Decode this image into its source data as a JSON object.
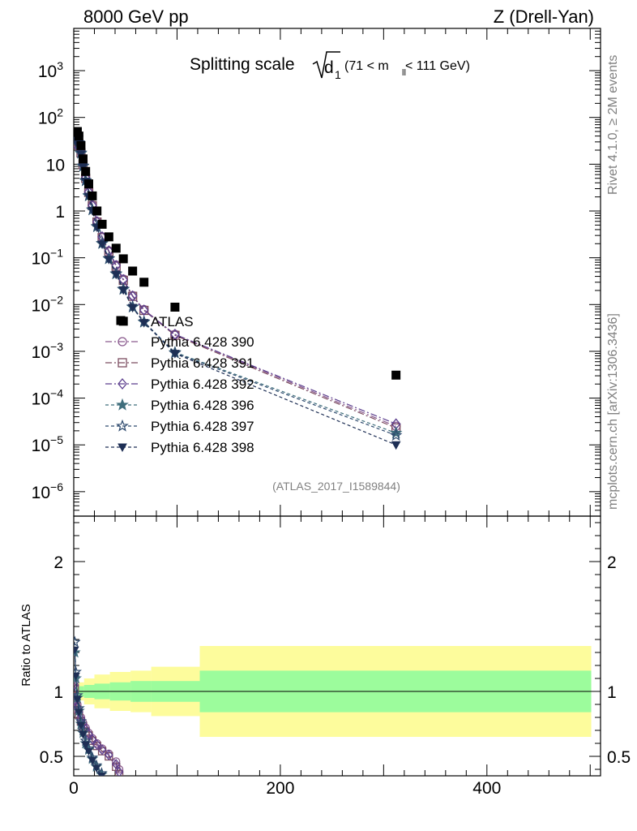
{
  "header": {
    "energy_label": "8000 GeV pp",
    "process_label": "Z (Drell-Yan)"
  },
  "side_labels": {
    "rivet": "Rivet 4.1.0, ≥ 2M events",
    "mcplots": "mcplots.cern.ch [arXiv:1306.3436]"
  },
  "chart_data": [
    {
      "type": "scatter",
      "panel": "main",
      "title_main": "Splitting scale",
      "title_var": "d",
      "title_sub": "1",
      "title_range_pre": "(71 < m",
      "title_range_sub": "ll",
      "title_range_post": " < 111 GeV)",
      "analysis_label": "(ATLAS_2017_I1589844)",
      "yscale": "log",
      "xlim": [
        0,
        510
      ],
      "ylim": [
        3e-07,
        8000
      ],
      "ytick_labels": [
        {
          "value": 1e-06,
          "base": "10",
          "exp": "−6"
        },
        {
          "value": 1e-05,
          "base": "10",
          "exp": "−5"
        },
        {
          "value": 0.0001,
          "base": "10",
          "exp": "−4"
        },
        {
          "value": 0.001,
          "base": "10",
          "exp": "−3"
        },
        {
          "value": 0.01,
          "base": "10",
          "exp": "−2"
        },
        {
          "value": 0.1,
          "base": "10",
          "exp": "−1"
        },
        {
          "value": 1,
          "base": "1",
          "exp": ""
        },
        {
          "value": 10,
          "base": "10",
          "exp": ""
        },
        {
          "value": 100,
          "base": "10",
          "exp": "2"
        },
        {
          "value": 1000,
          "base": "10",
          "exp": "3"
        }
      ],
      "data": {
        "name": "ATLAS",
        "x": [
          2,
          3.5,
          5,
          7,
          9,
          11.5,
          14.5,
          18,
          22.5,
          27.5,
          34,
          41,
          48,
          57,
          68,
          98,
          312
        ],
        "y": [
          48,
          50,
          40,
          25,
          13,
          7,
          3.8,
          2.1,
          1.0,
          0.52,
          0.28,
          0.16,
          0.095,
          0.052,
          0.03,
          0.0088,
          0.00031
        ],
        "extra_points": [
          {
            "x": 48,
            "y": 0.0044
          }
        ]
      },
      "series": [
        {
          "name": "Pythia 6.428 390",
          "marker": "circle",
          "color": "#8a5a8e",
          "dash": "8,3,2,3",
          "x": [
            2,
            3.5,
            5,
            7,
            9,
            11.5,
            14.5,
            18,
            22.5,
            27.5,
            34,
            41,
            48,
            57,
            68,
            98,
            312
          ],
          "y": [
            28,
            34,
            28,
            18,
            10,
            5.2,
            2.6,
            1.35,
            0.6,
            0.28,
            0.14,
            0.07,
            0.035,
            0.0155,
            0.0078,
            0.0023,
            2.5e-05
          ]
        },
        {
          "name": "Pythia 6.428 391",
          "marker": "square",
          "color": "#7c4d60",
          "dash": "8,3,2,3",
          "x": [
            2,
            3.5,
            5,
            7,
            9,
            11.5,
            14.5,
            18,
            22.5,
            27.5,
            34,
            41,
            48,
            57,
            68,
            98,
            312
          ],
          "y": [
            26,
            33,
            27,
            17.5,
            9.8,
            5.0,
            2.5,
            1.3,
            0.58,
            0.27,
            0.135,
            0.066,
            0.033,
            0.015,
            0.0075,
            0.0022,
            2.3e-05
          ]
        },
        {
          "name": "Pythia 6.428 392",
          "marker": "diamond",
          "color": "#5c3f8e",
          "dash": "8,3,2,3",
          "x": [
            2,
            3.5,
            5,
            7,
            9,
            11.5,
            14.5,
            18,
            22.5,
            27.5,
            34,
            41,
            48,
            57,
            68,
            98,
            312
          ],
          "y": [
            27,
            34,
            28,
            18,
            10,
            5.1,
            2.55,
            1.32,
            0.59,
            0.28,
            0.14,
            0.068,
            0.034,
            0.0152,
            0.0076,
            0.0023,
            2.8e-05
          ]
        },
        {
          "name": "Pythia 6.428 396",
          "marker": "star",
          "color": "#3f6e7c",
          "dash": "4,3",
          "x": [
            2,
            3.5,
            5,
            7,
            9,
            11.5,
            14.5,
            18,
            22.5,
            27.5,
            34,
            41,
            48,
            57,
            68,
            98,
            312
          ],
          "y": [
            32,
            36,
            28,
            17,
            9.0,
            4.4,
            2.1,
            1.05,
            0.46,
            0.2,
            0.095,
            0.045,
            0.021,
            0.0088,
            0.0042,
            0.00095,
            1.8e-05
          ]
        },
        {
          "name": "Pythia 6.428 397",
          "marker": "star-open",
          "color": "#2e4a6e",
          "dash": "4,3",
          "x": [
            2,
            3.5,
            5,
            7,
            9,
            11.5,
            14.5,
            18,
            22.5,
            27.5,
            34,
            41,
            48,
            57,
            68,
            98,
            312
          ],
          "y": [
            33,
            37,
            29,
            17.5,
            9.2,
            4.5,
            2.15,
            1.07,
            0.47,
            0.205,
            0.097,
            0.046,
            0.0215,
            0.009,
            0.0043,
            0.00092,
            1.6e-05
          ]
        },
        {
          "name": "Pythia 6.428 398",
          "marker": "triangle-down",
          "color": "#1e2f55",
          "dash": "4,3",
          "x": [
            2,
            3.5,
            5,
            7,
            9,
            11.5,
            14.5,
            18,
            22.5,
            27.5,
            34,
            41,
            48,
            57,
            68,
            98,
            312
          ],
          "y": [
            30,
            35,
            27,
            16.5,
            8.8,
            4.3,
            2.05,
            1.02,
            0.45,
            0.195,
            0.092,
            0.044,
            0.0205,
            0.0086,
            0.0041,
            0.0009,
            1e-05
          ]
        }
      ]
    },
    {
      "type": "scatter",
      "panel": "ratio",
      "ylabel": "Ratio to ATLAS",
      "xlim": [
        0,
        510
      ],
      "ylim": [
        0.35,
        2.35
      ],
      "xtick_labels": [
        {
          "value": 0,
          "text": "0"
        },
        {
          "value": 200,
          "text": "200"
        },
        {
          "value": 400,
          "text": "400"
        }
      ],
      "ytick_labels": [
        {
          "value": 0.5,
          "text": "0.5"
        },
        {
          "value": 1,
          "text": "1"
        },
        {
          "value": 2,
          "text": "2"
        }
      ],
      "bands": [
        {
          "x0": 0,
          "x1": 4,
          "inner": 0.03,
          "outer": 0.04
        },
        {
          "x0": 4,
          "x1": 10,
          "inner": 0.04,
          "outer": 0.07
        },
        {
          "x0": 10,
          "x1": 20,
          "inner": 0.05,
          "outer": 0.1
        },
        {
          "x0": 20,
          "x1": 35,
          "inner": 0.06,
          "outer": 0.13
        },
        {
          "x0": 35,
          "x1": 55,
          "inner": 0.07,
          "outer": 0.15
        },
        {
          "x0": 55,
          "x1": 75,
          "inner": 0.08,
          "outer": 0.16
        },
        {
          "x0": 75,
          "x1": 122,
          "inner": 0.08,
          "outer": 0.19
        },
        {
          "x0": 122,
          "x1": 501,
          "inner": 0.16,
          "outer": 0.35
        }
      ],
      "band_colors": {
        "inner": "#9cfc9c",
        "outer": "#fdfc9c"
      },
      "series": [
        {
          "name": "390",
          "color": "#8a5a8e",
          "marker": "circle",
          "x": [
            1,
            2,
            3.5,
            5,
            7,
            9,
            11.5,
            14.5,
            18,
            22.5,
            27.5,
            34,
            41,
            44
          ],
          "y": [
            1.08,
            0.95,
            0.9,
            0.85,
            0.8,
            0.76,
            0.72,
            0.68,
            0.64,
            0.6,
            0.56,
            0.52,
            0.46,
            0.4
          ]
        },
        {
          "name": "391",
          "color": "#7c4d60",
          "marker": "square",
          "x": [
            1,
            2,
            3.5,
            5,
            7,
            9,
            11.5,
            14.5,
            18,
            22.5,
            27.5,
            34,
            41,
            44
          ],
          "y": [
            1.02,
            0.9,
            0.86,
            0.82,
            0.77,
            0.73,
            0.69,
            0.66,
            0.62,
            0.58,
            0.54,
            0.5,
            0.42,
            0.36
          ]
        },
        {
          "name": "392",
          "color": "#5c3f8e",
          "marker": "diamond",
          "x": [
            1,
            2,
            3.5,
            5,
            7,
            9,
            11.5,
            14.5,
            18,
            22.5,
            27.5,
            34,
            41,
            44
          ],
          "y": [
            1.05,
            0.93,
            0.88,
            0.84,
            0.79,
            0.75,
            0.71,
            0.67,
            0.63,
            0.59,
            0.55,
            0.51,
            0.44,
            0.38
          ]
        },
        {
          "name": "396",
          "color": "#3f6e7c",
          "marker": "star",
          "x": [
            1,
            2,
            3.5,
            5,
            7,
            9,
            11.5,
            14.5,
            18,
            22,
            27
          ],
          "y": [
            1.3,
            1.1,
            0.95,
            0.85,
            0.75,
            0.68,
            0.6,
            0.55,
            0.48,
            0.42,
            0.36
          ]
        },
        {
          "name": "397",
          "color": "#2e4a6e",
          "marker": "star-open",
          "x": [
            1,
            2,
            3.5,
            5,
            7,
            9,
            11.5,
            14.5,
            18,
            22,
            27
          ],
          "y": [
            1.38,
            1.15,
            0.97,
            0.87,
            0.77,
            0.7,
            0.62,
            0.56,
            0.49,
            0.43,
            0.37
          ]
        },
        {
          "name": "398",
          "color": "#1e2f55",
          "marker": "triangle-down",
          "x": [
            1,
            2,
            3.5,
            5,
            7,
            9,
            11.5,
            14.5,
            18,
            22,
            27
          ],
          "y": [
            1.32,
            1.12,
            0.94,
            0.84,
            0.74,
            0.67,
            0.59,
            0.54,
            0.47,
            0.41,
            0.35
          ]
        }
      ]
    }
  ]
}
